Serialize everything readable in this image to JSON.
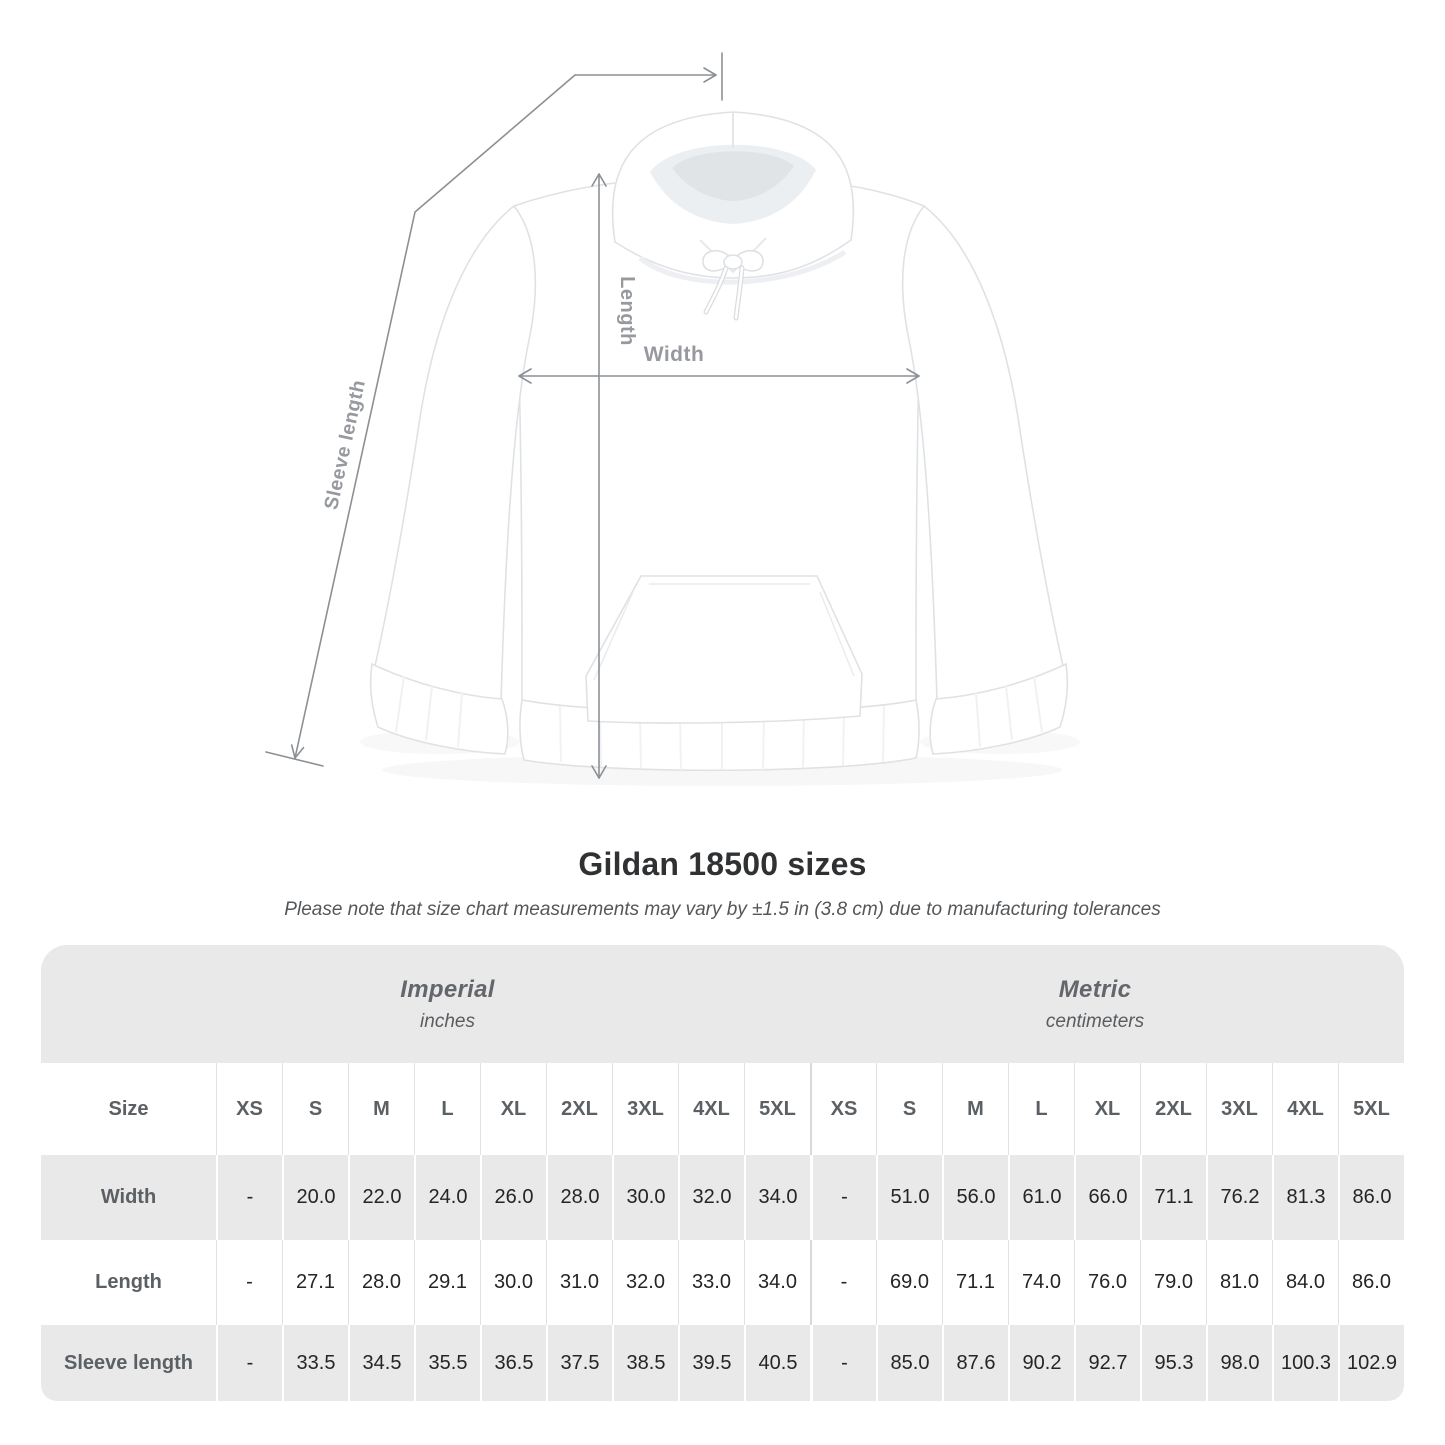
{
  "page": {
    "title": "Gildan 18500 sizes",
    "note": "Please note that size chart measurements may vary by ±1.5 in (3.8 cm) due to manufacturing tolerances"
  },
  "diagram": {
    "labels": {
      "width": "Width",
      "length": "Length",
      "sleeve": "Sleeve length"
    }
  },
  "table": {
    "size_header": "Size",
    "unit_groups": [
      {
        "name": "Imperial",
        "unit": "inches"
      },
      {
        "name": "Metric",
        "unit": "centimeters"
      }
    ],
    "sizes": [
      "XS",
      "S",
      "M",
      "L",
      "XL",
      "2XL",
      "3XL",
      "4XL",
      "5XL"
    ],
    "rows": [
      {
        "label": "Width",
        "imperial": [
          "-",
          "20.0",
          "22.0",
          "24.0",
          "26.0",
          "28.0",
          "30.0",
          "32.0",
          "34.0"
        ],
        "metric": [
          "-",
          "51.0",
          "56.0",
          "61.0",
          "66.0",
          "71.1",
          "76.2",
          "81.3",
          "86.0"
        ]
      },
      {
        "label": "Length",
        "imperial": [
          "-",
          "27.1",
          "28.0",
          "29.1",
          "30.0",
          "31.0",
          "32.0",
          "33.0",
          "34.0"
        ],
        "metric": [
          "-",
          "69.0",
          "71.1",
          "74.0",
          "76.0",
          "79.0",
          "81.0",
          "84.0",
          "86.0"
        ]
      },
      {
        "label": "Sleeve length",
        "imperial": [
          "-",
          "33.5",
          "34.5",
          "35.5",
          "36.5",
          "37.5",
          "38.5",
          "39.5",
          "40.5"
        ],
        "metric": [
          "-",
          "85.0",
          "87.6",
          "90.2",
          "92.7",
          "95.3",
          "98.0",
          "100.3",
          "102.9"
        ]
      }
    ]
  },
  "colors": {
    "table_stripe": "#e9e9e9",
    "measure_line": "#8c9095",
    "measure_label": "#96999d",
    "value_text": "#242527",
    "header_text": "#5b6064"
  }
}
